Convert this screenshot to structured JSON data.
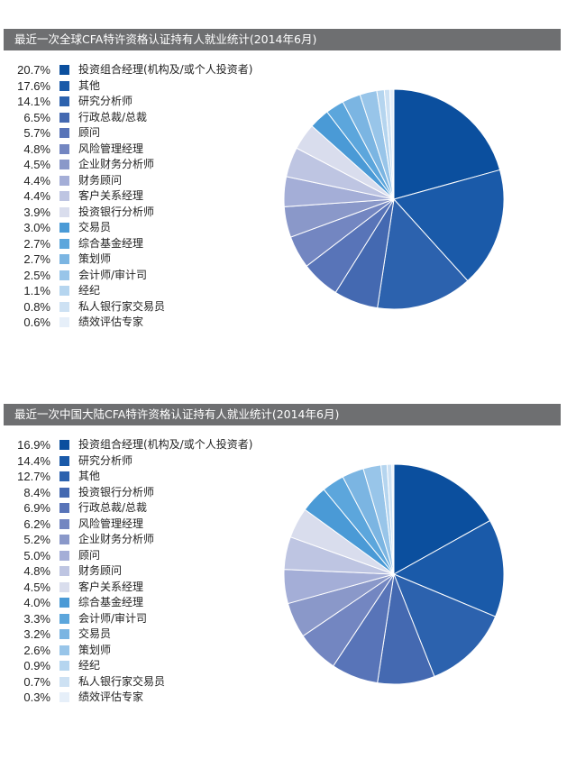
{
  "colors": [
    "#0b4f9e",
    "#1a5aa9",
    "#2c62ae",
    "#4469b1",
    "#5874b8",
    "#7386c1",
    "#8a98c9",
    "#a4aed7",
    "#bec5e2",
    "#d9dded",
    "#4a9ad6",
    "#5ca6dc",
    "#7bb5e2",
    "#98c5e9",
    "#b5d5ef",
    "#cde1f3",
    "#e6eff9"
  ],
  "chart_data": [
    {
      "type": "pie",
      "title": "最近一次全球CFA特许资格认证持有人就业统计(2014年6月)",
      "categories": [
        "投资组合经理(机构及/或个人投资者)",
        "其他",
        "研究分析师",
        "行政总裁/总裁",
        "顾问",
        "风险管理经理",
        "企业财务分析师",
        "财务顾问",
        "客户关系经理",
        "投资银行分析师",
        "交易员",
        "综合基金经理",
        "策划师",
        "会计师/审计司",
        "经纪",
        "私人银行家交易员",
        "绩效评估专家"
      ],
      "values": [
        20.7,
        17.6,
        14.1,
        6.5,
        5.7,
        4.8,
        4.5,
        4.4,
        4.4,
        3.9,
        3.0,
        2.7,
        2.7,
        2.5,
        1.1,
        0.8,
        0.6
      ],
      "labels": [
        "20.7%",
        "17.6%",
        "14.1%",
        "6.5%",
        "5.7%",
        "4.8%",
        "4.5%",
        "4.4%",
        "4.4%",
        "3.9%",
        "3.0%",
        "2.7%",
        "2.7%",
        "2.5%",
        "1.1%",
        "0.8%",
        "0.6%"
      ],
      "legend": "left"
    },
    {
      "type": "pie",
      "title": "最近一次中国大陆CFA特许资格认证持有人就业统计(2014年6月)",
      "categories": [
        "投资组合经理(机构及/或个人投资者)",
        "研究分析师",
        "其他",
        "投资银行分析师",
        "行政总裁/总裁",
        "风险管理经理",
        "企业财务分析师",
        "顾问",
        "财务顾问",
        "客户关系经理",
        "综合基金经理",
        "会计师/审计司",
        "交易员",
        "策划师",
        "经纪",
        "私人银行家交易员",
        "绩效评估专家"
      ],
      "values": [
        16.9,
        14.4,
        12.7,
        8.4,
        6.9,
        6.2,
        5.2,
        5.0,
        4.8,
        4.5,
        4.0,
        3.3,
        3.2,
        2.6,
        0.9,
        0.7,
        0.3
      ],
      "labels": [
        "16.9%",
        "14.4%",
        "12.7%",
        "8.4%",
        "6.9%",
        "6.2%",
        "5.2%",
        "5.0%",
        "4.8%",
        "4.5%",
        "4.0%",
        "3.3%",
        "3.2%",
        "2.6%",
        "0.9%",
        "0.7%",
        "0.3%"
      ],
      "legend": "left"
    }
  ]
}
